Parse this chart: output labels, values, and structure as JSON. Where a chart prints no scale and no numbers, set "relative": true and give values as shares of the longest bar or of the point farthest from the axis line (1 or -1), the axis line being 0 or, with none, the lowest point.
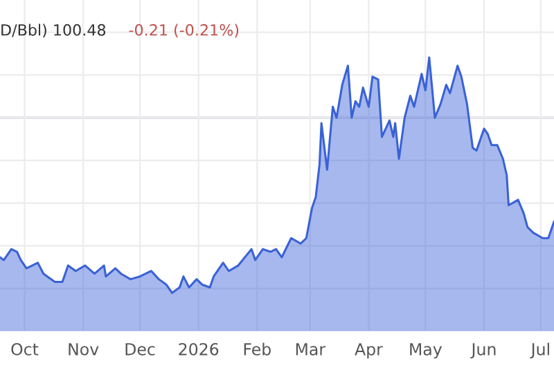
{
  "chart_data": {
    "type": "area",
    "title": "D/Bbl) 100.48",
    "annotations": [
      "-0.21 (-0.21%)"
    ],
    "relative": true,
    "grid": true,
    "x": [
      "2025-09-18",
      "2025-09-20",
      "2025-09-24",
      "2025-09-27",
      "2025-09-29",
      "2025-10-02",
      "2025-10-08",
      "2025-10-11",
      "2025-10-17",
      "2025-10-21",
      "2025-10-24",
      "2025-10-28",
      "2025-11-02",
      "2025-11-07",
      "2025-11-12",
      "2025-11-13",
      "2025-11-18",
      "2025-11-21",
      "2025-11-26",
      "2025-12-01",
      "2025-12-07",
      "2025-12-11",
      "2025-12-15",
      "2025-12-18",
      "2025-12-22",
      "2025-12-24",
      "2025-12-27",
      "2025-12-31",
      "2026-01-03",
      "2026-01-07",
      "2026-01-09",
      "2026-01-14",
      "2026-01-17",
      "2026-01-22",
      "2026-01-29",
      "2026-01-31",
      "2026-02-04",
      "2026-02-08",
      "2026-02-11",
      "2026-02-14",
      "2026-02-19",
      "2026-02-24",
      "2026-02-27",
      "2026-03-02",
      "2026-03-04",
      "2026-03-06",
      "2026-03-07",
      "2026-03-10",
      "2026-03-13",
      "2026-03-15",
      "2026-03-18",
      "2026-03-21",
      "2026-03-23",
      "2026-03-25",
      "2026-03-27",
      "2026-03-29",
      "2026-04-01",
      "2026-04-03",
      "2026-04-06",
      "2026-04-08",
      "2026-04-12",
      "2026-04-14",
      "2026-04-15",
      "2026-04-17",
      "2026-04-20",
      "2026-04-23",
      "2026-04-25",
      "2026-04-29",
      "2026-05-01",
      "2026-05-03",
      "2026-05-06",
      "2026-05-09",
      "2026-05-12",
      "2026-05-14",
      "2026-05-18",
      "2026-05-20",
      "2026-05-23",
      "2026-05-26",
      "2026-05-28",
      "2026-06-01",
      "2026-06-03",
      "2026-06-05",
      "2026-06-08",
      "2026-06-11",
      "2026-06-13",
      "2026-06-14",
      "2026-06-19",
      "2026-06-22",
      "2026-06-24",
      "2026-06-27",
      "2026-07-02",
      "2026-07-05",
      "2026-07-08"
    ],
    "series": [
      {
        "color": "#3a62d6",
        "values": [
          0.27,
          0.26,
          0.3,
          0.29,
          0.26,
          0.23,
          0.25,
          0.21,
          0.18,
          0.18,
          0.24,
          0.22,
          0.24,
          0.21,
          0.24,
          0.2,
          0.23,
          0.21,
          0.19,
          0.2,
          0.22,
          0.19,
          0.17,
          0.14,
          0.16,
          0.2,
          0.16,
          0.19,
          0.17,
          0.16,
          0.2,
          0.25,
          0.22,
          0.24,
          0.3,
          0.26,
          0.3,
          0.29,
          0.3,
          0.27,
          0.34,
          0.32,
          0.34,
          0.45,
          0.49,
          0.61,
          0.76,
          0.59,
          0.82,
          0.78,
          0.9,
          0.97,
          0.78,
          0.84,
          0.82,
          0.89,
          0.82,
          0.93,
          0.92,
          0.71,
          0.77,
          0.71,
          0.76,
          0.63,
          0.78,
          0.86,
          0.82,
          0.94,
          0.88,
          1,
          0.78,
          0.83,
          0.9,
          0.87,
          0.97,
          0.93,
          0.83,
          0.67,
          0.66,
          0.74,
          0.72,
          0.68,
          0.68,
          0.63,
          0.57,
          0.46,
          0.48,
          0.43,
          0.38,
          0.36,
          0.34,
          0.34,
          0.4
        ]
      }
    ],
    "ref_lines": [
      {
        "axis": "y",
        "value": 0.78,
        "color": "#c8ccd4"
      }
    ],
    "xlim": [
      "2025-09-18",
      "2026-07-08"
    ],
    "xticks": [
      {
        "value": "2025-10-01",
        "label": "Oct"
      },
      {
        "value": "2025-11-01",
        "label": "Nov"
      },
      {
        "value": "2025-12-01",
        "label": "Dec"
      },
      {
        "value": "2026-01-01",
        "label": "2026"
      },
      {
        "value": "2026-02-01",
        "label": "Feb"
      },
      {
        "value": "2026-03-01",
        "label": "Mar"
      },
      {
        "value": "2026-04-01",
        "label": "Apr"
      },
      {
        "value": "2026-05-01",
        "label": "May"
      },
      {
        "value": "2026-06-01",
        "label": "Jun"
      },
      {
        "value": "2026-07-01",
        "label": "Jul"
      }
    ],
    "tick_labels": "x"
  }
}
